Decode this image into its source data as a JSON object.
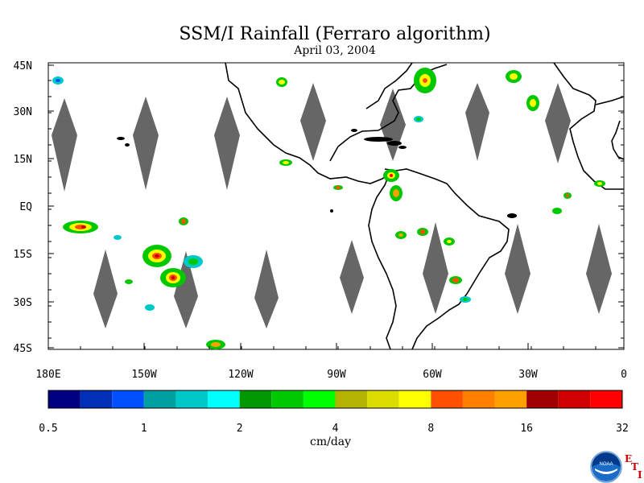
{
  "title": "SSM/I Rainfall (Ferraro algorithm)",
  "date": "April 03, 2004",
  "lat_labels": [
    "45N",
    "30N",
    "15N",
    "EQ",
    "15S",
    "30S",
    "45S"
  ],
  "lon_labels": [
    "180E",
    "150W",
    "120W",
    "90W",
    "60W",
    "30W",
    "0"
  ],
  "colorbar": {
    "colors": [
      "#000080",
      "#0030b8",
      "#0050ff",
      "#00a0a0",
      "#00c8c8",
      "#00ffff",
      "#009800",
      "#00c800",
      "#00ff00",
      "#b4b400",
      "#dcdc00",
      "#ffff00",
      "#ff5000",
      "#ff8000",
      "#ffa000",
      "#a00000",
      "#d00000",
      "#ff0000"
    ],
    "labels": [
      "0.5",
      "1",
      "2",
      "4",
      "8",
      "16",
      "32"
    ],
    "unit": "cm/day"
  },
  "logo": {
    "icon": "noaa-logo-icon",
    "text": "NOAA"
  },
  "eti": {
    "e": "E",
    "t": "T",
    "i": "I"
  }
}
